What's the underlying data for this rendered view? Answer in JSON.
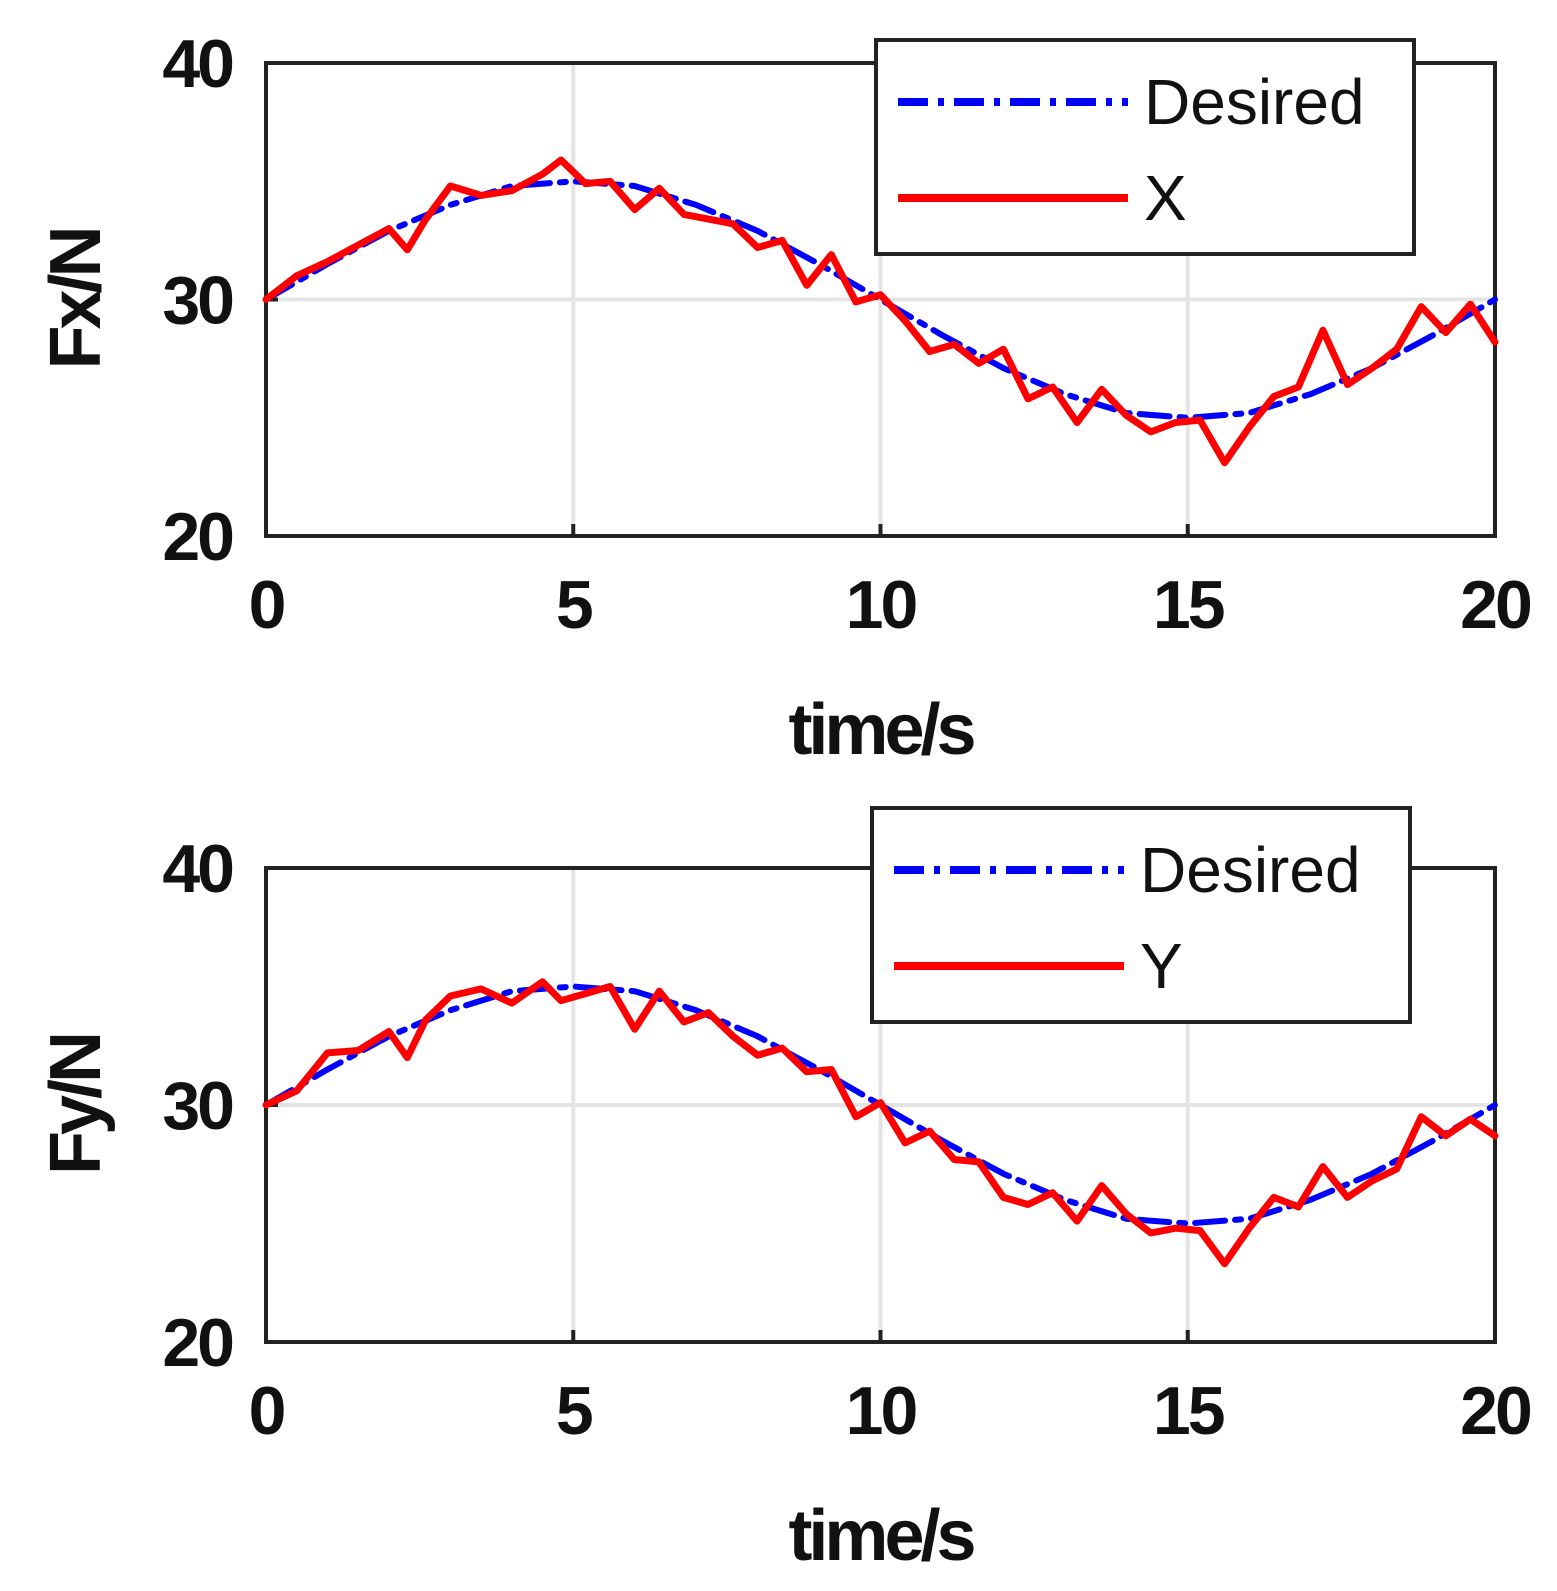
{
  "chart_data": [
    {
      "type": "line",
      "xlabel": "time/s",
      "ylabel": "Fx/N",
      "xlim": [
        0,
        20
      ],
      "ylim": [
        20,
        40
      ],
      "xticks": [
        "0",
        "5",
        "10",
        "15",
        "20"
      ],
      "yticks": [
        "20",
        "30",
        "40"
      ],
      "grid": true,
      "legend_position": "top-right",
      "series": [
        {
          "name": "Desired",
          "color": "#0000ff",
          "style": "dash-dot",
          "x": [
            0,
            1,
            2,
            3,
            4,
            5,
            6,
            7,
            8,
            9,
            10,
            11,
            12,
            13,
            14,
            15,
            16,
            17,
            18,
            19,
            20
          ],
          "y": [
            30.0,
            31.5,
            32.9,
            34.0,
            34.8,
            35.0,
            34.8,
            34.0,
            32.9,
            31.5,
            30.0,
            28.5,
            27.1,
            26.0,
            25.2,
            25.0,
            25.2,
            26.0,
            27.1,
            28.5,
            30.0
          ]
        },
        {
          "name": "X",
          "color": "#ff0000",
          "style": "solid",
          "x": [
            0,
            0.5,
            1,
            1.5,
            2,
            2.3,
            2.6,
            3,
            3.5,
            4,
            4.5,
            4.8,
            5.2,
            5.6,
            6,
            6.4,
            6.8,
            7.2,
            7.6,
            8,
            8.4,
            8.8,
            9.2,
            9.6,
            10,
            10.4,
            10.8,
            11.2,
            11.6,
            12,
            12.4,
            12.8,
            13.2,
            13.6,
            14,
            14.4,
            14.8,
            15.2,
            15.6,
            16,
            16.4,
            16.8,
            17.2,
            17.6,
            18,
            18.4,
            18.8,
            19.2,
            19.6,
            20
          ],
          "y": [
            30.0,
            31.0,
            31.6,
            32.3,
            33.0,
            32.1,
            33.4,
            34.8,
            34.4,
            34.6,
            35.3,
            35.9,
            34.9,
            35.0,
            33.8,
            34.7,
            33.6,
            33.4,
            33.2,
            32.2,
            32.5,
            30.6,
            31.9,
            29.9,
            30.2,
            29.1,
            27.8,
            28.1,
            27.3,
            27.9,
            25.8,
            26.3,
            24.8,
            26.2,
            25.1,
            24.4,
            24.8,
            24.9,
            23.1,
            24.6,
            25.9,
            26.3,
            28.7,
            26.4,
            27.1,
            27.9,
            29.7,
            28.6,
            29.8,
            28.2
          ]
        }
      ]
    },
    {
      "type": "line",
      "xlabel": "time/s",
      "ylabel": "Fy/N",
      "xlim": [
        0,
        20
      ],
      "ylim": [
        20,
        40
      ],
      "xticks": [
        "0",
        "5",
        "10",
        "15",
        "20"
      ],
      "yticks": [
        "20",
        "30",
        "40"
      ],
      "grid": true,
      "legend_position": "top-right",
      "series": [
        {
          "name": "Desired",
          "color": "#0000ff",
          "style": "dash-dot",
          "x": [
            0,
            1,
            2,
            3,
            4,
            5,
            6,
            7,
            8,
            9,
            10,
            11,
            12,
            13,
            14,
            15,
            16,
            17,
            18,
            19,
            20
          ],
          "y": [
            30.0,
            31.5,
            32.9,
            34.0,
            34.8,
            35.0,
            34.8,
            34.0,
            32.9,
            31.5,
            30.0,
            28.5,
            27.1,
            26.0,
            25.2,
            25.0,
            25.2,
            26.0,
            27.1,
            28.5,
            30.0
          ]
        },
        {
          "name": "Y",
          "color": "#ff0000",
          "style": "solid",
          "x": [
            0,
            0.5,
            1,
            1.5,
            2,
            2.3,
            2.6,
            3,
            3.5,
            4,
            4.5,
            4.8,
            5.2,
            5.6,
            6,
            6.4,
            6.8,
            7.2,
            7.6,
            8,
            8.4,
            8.8,
            9.2,
            9.6,
            10,
            10.4,
            10.8,
            11.2,
            11.6,
            12,
            12.4,
            12.8,
            13.2,
            13.6,
            14,
            14.4,
            14.8,
            15.2,
            15.6,
            16,
            16.4,
            16.8,
            17.2,
            17.6,
            18,
            18.4,
            18.8,
            19.2,
            19.6,
            20
          ],
          "y": [
            30.0,
            30.6,
            32.2,
            32.3,
            33.1,
            32.0,
            33.6,
            34.6,
            34.9,
            34.3,
            35.2,
            34.4,
            34.7,
            35.0,
            33.2,
            34.8,
            33.5,
            33.9,
            32.9,
            32.1,
            32.4,
            31.4,
            31.5,
            29.5,
            30.1,
            28.4,
            28.9,
            27.7,
            27.6,
            26.1,
            25.8,
            26.3,
            25.1,
            26.6,
            25.4,
            24.6,
            24.8,
            24.7,
            23.3,
            24.8,
            26.1,
            25.7,
            27.4,
            26.1,
            26.8,
            27.3,
            29.5,
            28.7,
            29.4,
            28.7
          ]
        }
      ]
    }
  ]
}
